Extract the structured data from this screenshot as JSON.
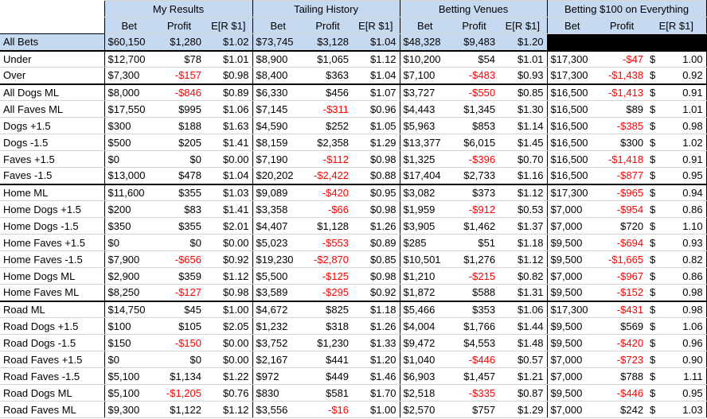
{
  "groups": [
    "My Results",
    "Tailing History",
    "Betting Venues",
    "Betting $100 on Everything"
  ],
  "subheaders": [
    "Bet",
    "Profit",
    "E[R $1]"
  ],
  "all_bets": {
    "label": "All Bets",
    "cells": [
      [
        "$60,150",
        "$1,280",
        "$1.02"
      ],
      [
        "$73,745",
        "$3,128",
        "$1.04"
      ],
      [
        "$48,328",
        "$9,483",
        "$1.20"
      ]
    ]
  },
  "rows": [
    {
      "label": "Under",
      "cells": [
        [
          "$12,700",
          "$78",
          "$1.01"
        ],
        [
          "$8,900",
          "$1,065",
          "$1.12"
        ],
        [
          "$10,200",
          "$54",
          "$1.01"
        ],
        [
          "$17,300",
          "-$47",
          "$",
          "1.00"
        ]
      ]
    },
    {
      "label": "Over",
      "cells": [
        [
          "$7,300",
          "-$157",
          "$0.98"
        ],
        [
          "$8,400",
          "$363",
          "$1.04"
        ],
        [
          "$7,100",
          "-$483",
          "$0.93"
        ],
        [
          "$17,300",
          "-$1,438",
          "$",
          "0.92"
        ]
      ]
    },
    {
      "label": "All Dogs ML",
      "section": true,
      "cells": [
        [
          "$8,000",
          "-$846",
          "$0.89"
        ],
        [
          "$6,330",
          "$456",
          "$1.07"
        ],
        [
          "$3,727",
          "-$550",
          "$0.85"
        ],
        [
          "$16,500",
          "-$1,413",
          "$",
          "0.91"
        ]
      ]
    },
    {
      "label": "All Faves ML",
      "cells": [
        [
          "$17,550",
          "$995",
          "$1.06"
        ],
        [
          "$7,145",
          "-$311",
          "$0.96"
        ],
        [
          "$4,443",
          "$1,345",
          "$1.30"
        ],
        [
          "$16,500",
          "$89",
          "$",
          "1.01"
        ]
      ]
    },
    {
      "label": "Dogs +1.5",
      "cells": [
        [
          "$300",
          "$188",
          "$1.63"
        ],
        [
          "$4,590",
          "$252",
          "$1.05"
        ],
        [
          "$5,963",
          "$853",
          "$1.14"
        ],
        [
          "$16,500",
          "-$385",
          "$",
          "0.98"
        ]
      ]
    },
    {
      "label": "Dogs -1.5",
      "cells": [
        [
          "$500",
          "$205",
          "$1.41"
        ],
        [
          "$8,159",
          "$2,358",
          "$1.29"
        ],
        [
          "$13,377",
          "$6,015",
          "$1.45"
        ],
        [
          "$16,500",
          "$300",
          "$",
          "1.02"
        ]
      ]
    },
    {
      "label": "Faves +1.5",
      "cells": [
        [
          "$0",
          "$0",
          "$0.00"
        ],
        [
          "$7,190",
          "-$112",
          "$0.98"
        ],
        [
          "$1,325",
          "-$396",
          "$0.70"
        ],
        [
          "$16,500",
          "-$1,418",
          "$",
          "0.91"
        ]
      ]
    },
    {
      "label": "Faves -1.5",
      "cells": [
        [
          "$13,000",
          "$478",
          "$1.04"
        ],
        [
          "$20,202",
          "-$2,422",
          "$0.88"
        ],
        [
          "$17,404",
          "$2,733",
          "$1.16"
        ],
        [
          "$16,500",
          "-$877",
          "$",
          "0.95"
        ]
      ]
    },
    {
      "label": "Home ML",
      "section": true,
      "cells": [
        [
          "$11,600",
          "$355",
          "$1.03"
        ],
        [
          "$9,089",
          "-$420",
          "$0.95"
        ],
        [
          "$3,082",
          "$373",
          "$1.12"
        ],
        [
          "$17,300",
          "-$965",
          "$",
          "0.94"
        ]
      ]
    },
    {
      "label": "Home Dogs +1.5",
      "cells": [
        [
          "$200",
          "$83",
          "$1.41"
        ],
        [
          "$3,358",
          "-$66",
          "$0.98"
        ],
        [
          "$1,959",
          "-$912",
          "$0.53"
        ],
        [
          "$7,000",
          "-$954",
          "$",
          "0.86"
        ]
      ]
    },
    {
      "label": "Home Dogs -1.5",
      "cells": [
        [
          "$350",
          "$355",
          "$2.01"
        ],
        [
          "$4,407",
          "$1,128",
          "$1.26"
        ],
        [
          "$3,905",
          "$1,462",
          "$1.37"
        ],
        [
          "$7,000",
          "$720",
          "$",
          "1.10"
        ]
      ]
    },
    {
      "label": "Home Faves +1.5",
      "cells": [
        [
          "$0",
          "$0",
          "$0.00"
        ],
        [
          "$5,023",
          "-$553",
          "$0.89"
        ],
        [
          "$285",
          "$51",
          "$1.18"
        ],
        [
          "$9,500",
          "-$694",
          "$",
          "0.93"
        ]
      ]
    },
    {
      "label": "Home Faves -1.5",
      "cells": [
        [
          "$7,900",
          "-$656",
          "$0.92"
        ],
        [
          "$19,230",
          "-$2,870",
          "$0.85"
        ],
        [
          "$10,501",
          "$1,276",
          "$1.12"
        ],
        [
          "$9,500",
          "-$1,665",
          "$",
          "0.82"
        ]
      ]
    },
    {
      "label": "Home Dogs ML",
      "cells": [
        [
          "$2,900",
          "$359",
          "$1.12"
        ],
        [
          "$5,500",
          "-$125",
          "$0.98"
        ],
        [
          "$1,210",
          "-$215",
          "$0.82"
        ],
        [
          "$7,000",
          "-$967",
          "$",
          "0.86"
        ]
      ]
    },
    {
      "label": "Home Faves ML",
      "cells": [
        [
          "$8,250",
          "-$127",
          "$0.98"
        ],
        [
          "$3,589",
          "-$295",
          "$0.92"
        ],
        [
          "$1,872",
          "$588",
          "$1.31"
        ],
        [
          "$9,500",
          "-$152",
          "$",
          "0.98"
        ]
      ]
    },
    {
      "label": "Road ML",
      "section": true,
      "cells": [
        [
          "$14,750",
          "$45",
          "$1.00"
        ],
        [
          "$4,672",
          "$825",
          "$1.18"
        ],
        [
          "$5,466",
          "$353",
          "$1.06"
        ],
        [
          "$17,300",
          "-$431",
          "$",
          "0.98"
        ]
      ]
    },
    {
      "label": "Road Dogs +1.5",
      "cells": [
        [
          "$100",
          "$105",
          "$2.05"
        ],
        [
          "$1,232",
          "$318",
          "$1.26"
        ],
        [
          "$4,004",
          "$1,766",
          "$1.44"
        ],
        [
          "$9,500",
          "$569",
          "$",
          "1.06"
        ]
      ]
    },
    {
      "label": "Road Dogs -1.5",
      "cells": [
        [
          "$150",
          "-$150",
          "$0.00"
        ],
        [
          "$3,752",
          "$1,230",
          "$1.33"
        ],
        [
          "$9,472",
          "$4,553",
          "$1.48"
        ],
        [
          "$9,500",
          "-$420",
          "$",
          "0.96"
        ]
      ]
    },
    {
      "label": "Road Faves +1.5",
      "cells": [
        [
          "$0",
          "$0",
          "$0.00"
        ],
        [
          "$2,167",
          "$441",
          "$1.20"
        ],
        [
          "$1,040",
          "-$446",
          "$0.57"
        ],
        [
          "$7,000",
          "-$723",
          "$",
          "0.90"
        ]
      ]
    },
    {
      "label": "Road Faves -1.5",
      "cells": [
        [
          "$5,100",
          "$1,134",
          "$1.22"
        ],
        [
          "$972",
          "$449",
          "$1.46"
        ],
        [
          "$6,903",
          "$1,457",
          "$1.21"
        ],
        [
          "$7,000",
          "$788",
          "$",
          "1.11"
        ]
      ]
    },
    {
      "label": "Road Dogs ML",
      "cells": [
        [
          "$5,100",
          "-$1,205",
          "$0.76"
        ],
        [
          "$830",
          "$581",
          "$1.70"
        ],
        [
          "$2,518",
          "-$335",
          "$0.87"
        ],
        [
          "$9,500",
          "-$446",
          "$",
          "0.95"
        ]
      ]
    },
    {
      "label": "Road Faves ML",
      "cells": [
        [
          "$9,300",
          "$1,122",
          "$1.12"
        ],
        [
          "$3,556",
          "-$16",
          "$1.00"
        ],
        [
          "$2,570",
          "$757",
          "$1.29"
        ],
        [
          "$7,000",
          "$242",
          "$",
          "1.03"
        ]
      ]
    }
  ]
}
